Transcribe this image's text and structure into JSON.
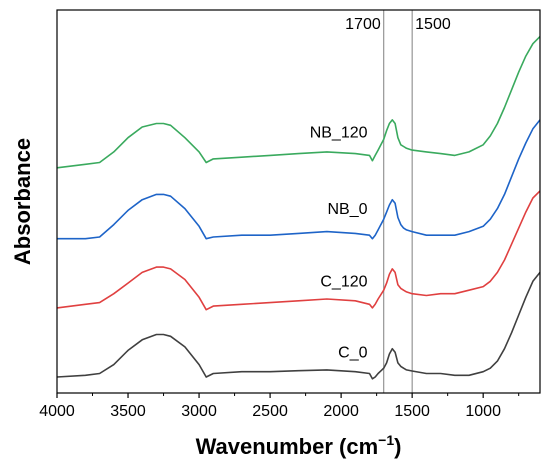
{
  "chart_data": {
    "type": "line",
    "xlabel": "Wavenumber (cm",
    "xlabel_sup": "−1",
    "xlabel_close": ")",
    "ylabel": "Absorbance",
    "xlim": [
      4000,
      600
    ],
    "ylim": [
      0,
      10.8
    ],
    "x_reversed": true,
    "y_ticks_shown": false,
    "grid": false,
    "x_ticks": [
      4000,
      3500,
      3000,
      2500,
      2000,
      1500,
      1000
    ],
    "x_tick_labels": [
      "4000",
      "3500",
      "3000",
      "2500",
      "2000",
      "1500",
      "1000"
    ],
    "reference_lines": [
      {
        "x": 1700,
        "label": "1700"
      },
      {
        "x": 1500,
        "label": "1500"
      }
    ],
    "series": [
      {
        "name": "C_0",
        "color": "#404040",
        "label_x": 1800,
        "label_y": 1.0,
        "x": [
          4000,
          3800,
          3700,
          3600,
          3500,
          3400,
          3300,
          3250,
          3200,
          3100,
          3000,
          2950,
          2900,
          2700,
          2500,
          2300,
          2100,
          1900,
          1800,
          1780,
          1760,
          1740,
          1700,
          1680,
          1660,
          1640,
          1620,
          1600,
          1580,
          1560,
          1540,
          1500,
          1400,
          1300,
          1200,
          1100,
          1000,
          950,
          900,
          850,
          800,
          750,
          700,
          650,
          600
        ],
        "y": [
          0.45,
          0.5,
          0.55,
          0.8,
          1.2,
          1.5,
          1.65,
          1.65,
          1.6,
          1.3,
          0.8,
          0.45,
          0.55,
          0.6,
          0.6,
          0.63,
          0.65,
          0.6,
          0.55,
          0.4,
          0.45,
          0.55,
          0.7,
          0.85,
          1.1,
          1.25,
          1.15,
          0.85,
          0.75,
          0.7,
          0.65,
          0.62,
          0.55,
          0.55,
          0.5,
          0.5,
          0.6,
          0.7,
          0.9,
          1.25,
          1.7,
          2.2,
          2.7,
          3.15,
          3.4
        ]
      },
      {
        "name": "C_120",
        "color": "#e04040",
        "label_x": 1800,
        "label_y": 3.0,
        "x": [
          4000,
          3800,
          3700,
          3600,
          3500,
          3400,
          3300,
          3250,
          3200,
          3100,
          3000,
          2950,
          2900,
          2700,
          2500,
          2300,
          2100,
          1900,
          1800,
          1780,
          1760,
          1740,
          1700,
          1680,
          1660,
          1640,
          1620,
          1600,
          1580,
          1560,
          1540,
          1500,
          1400,
          1300,
          1200,
          1100,
          1000,
          950,
          900,
          850,
          800,
          750,
          700,
          650,
          600
        ],
        "y": [
          2.4,
          2.5,
          2.55,
          2.8,
          3.1,
          3.4,
          3.55,
          3.55,
          3.5,
          3.2,
          2.7,
          2.35,
          2.45,
          2.5,
          2.55,
          2.6,
          2.65,
          2.6,
          2.5,
          2.4,
          2.5,
          2.65,
          2.9,
          3.1,
          3.35,
          3.5,
          3.4,
          3.05,
          2.95,
          2.9,
          2.85,
          2.8,
          2.75,
          2.8,
          2.8,
          2.9,
          3.0,
          3.15,
          3.4,
          3.75,
          4.2,
          4.65,
          5.1,
          5.5,
          5.7
        ]
      },
      {
        "name": "NB_0",
        "color": "#1e64c8",
        "label_x": 1800,
        "label_y": 5.05,
        "x": [
          4000,
          3800,
          3700,
          3600,
          3500,
          3400,
          3300,
          3250,
          3200,
          3100,
          3000,
          2950,
          2900,
          2700,
          2500,
          2300,
          2100,
          1900,
          1800,
          1780,
          1760,
          1740,
          1700,
          1680,
          1660,
          1640,
          1620,
          1600,
          1580,
          1560,
          1540,
          1500,
          1400,
          1300,
          1200,
          1100,
          1000,
          950,
          900,
          850,
          800,
          750,
          700,
          650,
          600
        ],
        "y": [
          4.35,
          4.35,
          4.4,
          4.75,
          5.15,
          5.45,
          5.6,
          5.6,
          5.55,
          5.2,
          4.7,
          4.35,
          4.4,
          4.45,
          4.45,
          4.5,
          4.55,
          4.5,
          4.45,
          4.35,
          4.45,
          4.6,
          4.9,
          5.1,
          5.3,
          5.45,
          5.35,
          4.95,
          4.75,
          4.65,
          4.6,
          4.55,
          4.45,
          4.45,
          4.45,
          4.55,
          4.7,
          4.9,
          5.2,
          5.6,
          6.1,
          6.6,
          7.05,
          7.45,
          7.7
        ]
      },
      {
        "name": "NB_120",
        "color": "#3aaa5e",
        "label_x": 1800,
        "label_y": 7.2,
        "x": [
          4000,
          3800,
          3700,
          3600,
          3500,
          3400,
          3300,
          3250,
          3200,
          3100,
          3000,
          2950,
          2900,
          2700,
          2500,
          2300,
          2100,
          1900,
          1800,
          1780,
          1760,
          1740,
          1700,
          1680,
          1660,
          1640,
          1620,
          1600,
          1580,
          1560,
          1540,
          1500,
          1400,
          1300,
          1200,
          1100,
          1000,
          950,
          900,
          850,
          800,
          750,
          700,
          650,
          600
        ],
        "y": [
          6.35,
          6.45,
          6.5,
          6.8,
          7.2,
          7.5,
          7.6,
          7.6,
          7.55,
          7.2,
          6.8,
          6.5,
          6.6,
          6.65,
          6.7,
          6.75,
          6.8,
          6.75,
          6.7,
          6.55,
          6.7,
          6.85,
          7.15,
          7.4,
          7.6,
          7.7,
          7.6,
          7.2,
          7.0,
          6.95,
          6.9,
          6.85,
          6.8,
          6.75,
          6.7,
          6.8,
          7.0,
          7.25,
          7.6,
          8.05,
          8.55,
          9.05,
          9.5,
          9.85,
          10.05
        ]
      }
    ]
  }
}
